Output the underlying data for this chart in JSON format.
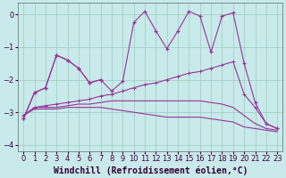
{
  "bg_color": "#c8eaea",
  "line_color": "#993399",
  "grid_color": "#99ccbb",
  "xlabel": "Windchill (Refroidissement éolien,°C)",
  "x_values": [
    0,
    1,
    2,
    3,
    4,
    5,
    6,
    7,
    8,
    9,
    10,
    11,
    12,
    13,
    14,
    15,
    16,
    17,
    18,
    19,
    20,
    21,
    22,
    23
  ],
  "jagged": [
    -3.2,
    -2.4,
    -2.25,
    -1.25,
    -1.4,
    -1.65,
    -2.1,
    -2.0,
    -2.35,
    -2.05,
    -0.25,
    0.1,
    -0.5,
    -1.05,
    -0.5,
    0.1,
    -0.05,
    -1.15,
    -0.05,
    0.05,
    -1.5,
    -2.7,
    -3.35,
    -3.5
  ],
  "upper": [
    -3.2,
    -2.4,
    -2.25,
    -1.25,
    -1.4,
    -1.65,
    -2.1,
    -2.0,
    null,
    null,
    null,
    null,
    null,
    null,
    null,
    null,
    null,
    null,
    null,
    null,
    null,
    null,
    null,
    null
  ],
  "smooth1": [
    -3.1,
    -2.85,
    -2.8,
    -2.75,
    -2.7,
    -2.65,
    -2.6,
    -2.5,
    -2.45,
    -2.35,
    -2.25,
    -2.15,
    -2.1,
    -2.0,
    -1.9,
    -1.8,
    -1.75,
    -1.65,
    -1.55,
    -1.45,
    -2.45,
    -2.85,
    -3.35,
    -3.5
  ],
  "smooth2": [
    -3.1,
    -2.85,
    -2.85,
    -2.85,
    -2.8,
    -2.75,
    -2.75,
    -2.7,
    -2.65,
    -2.65,
    -2.65,
    -2.65,
    -2.65,
    -2.65,
    -2.65,
    -2.65,
    -2.65,
    -2.7,
    -2.75,
    -2.85,
    -3.1,
    -3.35,
    -3.5,
    -3.55
  ],
  "smooth3": [
    -3.1,
    -2.9,
    -2.9,
    -2.9,
    -2.85,
    -2.85,
    -2.85,
    -2.85,
    -2.9,
    -2.95,
    -3.0,
    -3.05,
    -3.1,
    -3.15,
    -3.15,
    -3.15,
    -3.15,
    -3.2,
    -3.25,
    -3.3,
    -3.45,
    -3.5,
    -3.55,
    -3.6
  ],
  "ylim": [
    -4.2,
    0.35
  ],
  "xlim": [
    -0.5,
    23.5
  ],
  "yticks": [
    0,
    -1,
    -2,
    -3,
    -4
  ],
  "xticks": [
    0,
    1,
    2,
    3,
    4,
    5,
    6,
    7,
    8,
    9,
    10,
    11,
    12,
    13,
    14,
    15,
    16,
    17,
    18,
    19,
    20,
    21,
    22,
    23
  ],
  "tick_fontsize": 6,
  "xlabel_fontsize": 7
}
